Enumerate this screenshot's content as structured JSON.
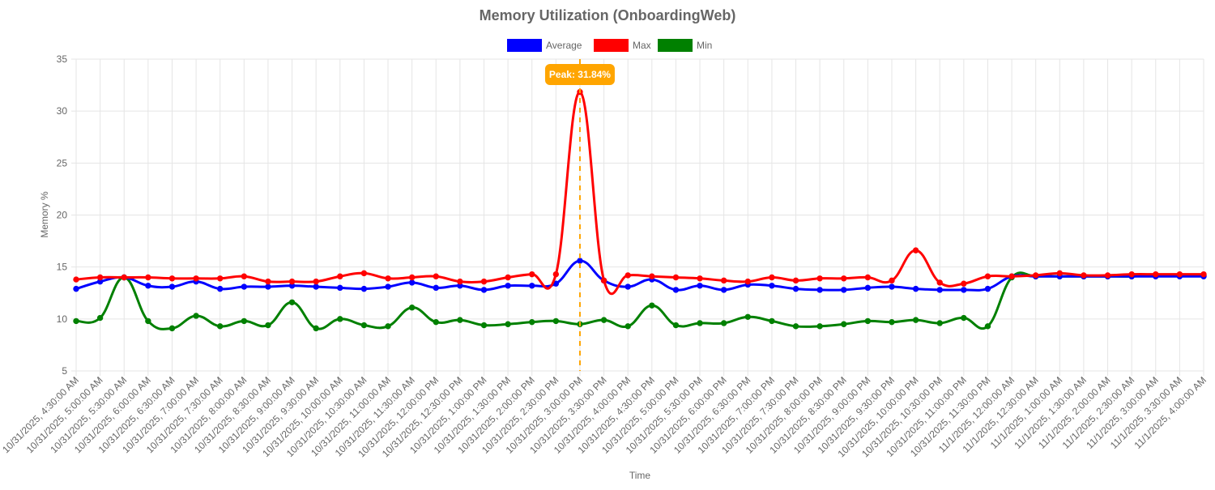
{
  "chart_data": {
    "type": "line",
    "title": "Memory Utilization (OnboardingWeb)",
    "xlabel": "Time",
    "ylabel": "Memory %",
    "ylim": [
      5,
      35
    ],
    "yticks": [
      5,
      10,
      15,
      20,
      25,
      30,
      35
    ],
    "grid": true,
    "legend_position": "top-center",
    "categories": [
      "10/31/2025, 4:30:00 AM",
      "10/31/2025, 5:00:00 AM",
      "10/31/2025, 5:30:00 AM",
      "10/31/2025, 6:00:00 AM",
      "10/31/2025, 6:30:00 AM",
      "10/31/2025, 7:00:00 AM",
      "10/31/2025, 7:30:00 AM",
      "10/31/2025, 8:00:00 AM",
      "10/31/2025, 8:30:00 AM",
      "10/31/2025, 9:00:00 AM",
      "10/31/2025, 9:30:00 AM",
      "10/31/2025, 10:00:00 AM",
      "10/31/2025, 10:30:00 AM",
      "10/31/2025, 11:00:00 AM",
      "10/31/2025, 11:30:00 AM",
      "10/31/2025, 12:00:00 PM",
      "10/31/2025, 12:30:00 PM",
      "10/31/2025, 1:00:00 PM",
      "10/31/2025, 1:30:00 PM",
      "10/31/2025, 2:00:00 PM",
      "10/31/2025, 2:30:00 PM",
      "10/31/2025, 3:00:00 PM",
      "10/31/2025, 3:30:00 PM",
      "10/31/2025, 4:00:00 PM",
      "10/31/2025, 4:30:00 PM",
      "10/31/2025, 5:00:00 PM",
      "10/31/2025, 5:30:00 PM",
      "10/31/2025, 6:00:00 PM",
      "10/31/2025, 6:30:00 PM",
      "10/31/2025, 7:00:00 PM",
      "10/31/2025, 7:30:00 PM",
      "10/31/2025, 8:00:00 PM",
      "10/31/2025, 8:30:00 PM",
      "10/31/2025, 9:00:00 PM",
      "10/31/2025, 9:30:00 PM",
      "10/31/2025, 10:00:00 PM",
      "10/31/2025, 10:30:00 PM",
      "10/31/2025, 11:00:00 PM",
      "10/31/2025, 11:30:00 PM",
      "11/1/2025, 12:00:00 AM",
      "11/1/2025, 12:30:00 AM",
      "11/1/2025, 1:00:00 AM",
      "11/1/2025, 1:30:00 AM",
      "11/1/2025, 2:00:00 AM",
      "11/1/2025, 2:30:00 AM",
      "11/1/2025, 3:00:00 AM",
      "11/1/2025, 3:30:00 AM",
      "11/1/2025, 4:00:00 AM"
    ],
    "series": [
      {
        "name": "Average",
        "color": "#0000ff",
        "values": [
          12.9,
          13.6,
          14.0,
          13.2,
          13.1,
          13.6,
          12.9,
          13.1,
          13.1,
          13.2,
          13.1,
          13.0,
          12.9,
          13.1,
          13.5,
          13.0,
          13.2,
          12.8,
          13.2,
          13.2,
          13.4,
          15.6,
          13.7,
          13.1,
          13.8,
          12.8,
          13.2,
          12.8,
          13.3,
          13.2,
          12.9,
          12.8,
          12.8,
          13.0,
          13.1,
          12.9,
          12.8,
          12.8,
          12.9,
          14.1,
          14.1,
          14.1,
          14.1,
          14.1,
          14.1,
          14.1,
          14.1,
          14.1
        ]
      },
      {
        "name": "Max",
        "color": "#ff0000",
        "values": [
          13.8,
          14.0,
          14.0,
          14.0,
          13.9,
          13.9,
          13.9,
          14.1,
          13.6,
          13.6,
          13.6,
          14.1,
          14.4,
          13.9,
          14.0,
          14.1,
          13.6,
          13.6,
          14.0,
          14.3,
          14.3,
          31.84,
          13.7,
          14.2,
          14.1,
          14.0,
          13.9,
          13.7,
          13.6,
          14.0,
          13.7,
          13.9,
          13.9,
          14.0,
          13.7,
          16.6,
          13.5,
          13.4,
          14.1,
          14.1,
          14.2,
          14.4,
          14.2,
          14.2,
          14.3,
          14.3,
          14.3,
          14.3
        ]
      },
      {
        "name": "Min",
        "color": "#008000",
        "values": [
          9.8,
          10.1,
          14.0,
          9.8,
          9.1,
          10.3,
          9.3,
          9.8,
          9.4,
          11.6,
          9.1,
          10.0,
          9.4,
          9.3,
          11.1,
          9.7,
          9.9,
          9.4,
          9.5,
          9.7,
          9.8,
          9.5,
          9.9,
          9.3,
          11.3,
          9.4,
          9.6,
          9.6,
          10.2,
          9.8,
          9.3,
          9.3,
          9.5,
          9.8,
          9.7,
          9.9,
          9.6,
          10.1,
          9.3,
          14.0,
          14.1,
          14.1,
          14.1,
          14.1,
          14.1,
          14.2,
          14.2,
          14.2
        ]
      }
    ],
    "annotation": {
      "label": "Peak: 31.84%",
      "category_index": 21,
      "value": 31.84,
      "color": "#ffa500"
    }
  }
}
